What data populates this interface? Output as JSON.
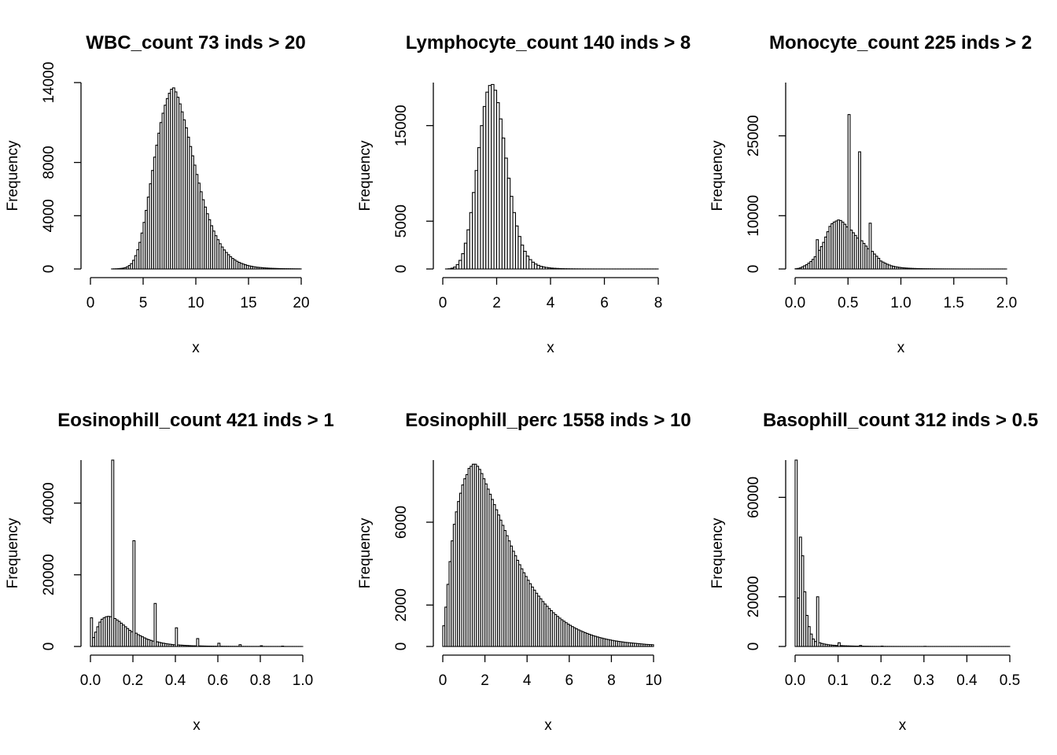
{
  "chart_data": [
    {
      "type": "bar",
      "title": "WBC_count 73 inds > 20",
      "xlabel": "x",
      "ylabel": "Frequency",
      "xlim": [
        0,
        20
      ],
      "ylim": [
        0,
        14000
      ],
      "xticks": [
        "0",
        "5",
        "10",
        "15",
        "20"
      ],
      "yticks": [
        "0",
        "4000",
        "8000",
        "14000"
      ],
      "bin_width": 0.2,
      "values": [
        0,
        0,
        0,
        0,
        0,
        0,
        0,
        0,
        0,
        0,
        5,
        10,
        15,
        25,
        40,
        60,
        100,
        160,
        260,
        400,
        650,
        1000,
        1450,
        2000,
        2700,
        3500,
        4400,
        5400,
        6400,
        7400,
        8400,
        9300,
        10200,
        11000,
        11700,
        12300,
        12800,
        13200,
        13500,
        13600,
        13300,
        12900,
        12400,
        11800,
        11200,
        10600,
        9900,
        9200,
        8500,
        7800,
        7100,
        6450,
        5800,
        5200,
        4650,
        4150,
        3700,
        3250,
        2850,
        2500,
        2200,
        1900,
        1650,
        1430,
        1240,
        1070,
        920,
        790,
        680,
        580,
        500,
        430,
        370,
        320,
        270,
        230,
        200,
        170,
        145,
        125,
        110,
        95,
        80,
        70,
        60,
        52,
        45,
        40,
        35,
        30,
        26,
        23,
        20,
        18,
        16,
        14,
        12,
        10,
        9,
        8,
        7,
        6,
        5,
        5,
        4,
        4,
        3,
        3,
        3,
        2,
        2,
        2,
        2,
        2,
        2,
        1,
        1,
        1,
        1,
        1,
        1,
        1,
        1,
        1,
        1,
        1,
        1,
        1,
        1,
        1,
        1,
        1,
        1,
        1,
        1,
        1,
        1,
        1,
        1,
        1,
        1,
        1,
        1,
        1,
        1,
        1,
        1,
        1,
        1,
        1,
        1,
        1,
        1,
        1,
        1,
        1,
        1,
        1,
        1,
        1,
        1,
        1,
        1,
        1,
        1,
        1,
        1,
        1,
        1,
        1,
        1,
        1,
        1,
        1,
        1,
        1,
        1,
        1,
        1,
        1,
        1,
        1,
        1,
        1,
        1,
        1,
        1,
        1,
        1,
        1,
        1,
        1,
        1,
        1,
        1,
        1,
        1,
        1,
        1,
        1,
        1,
        1,
        1,
        1
      ]
    },
    {
      "type": "bar",
      "title": "Lymphocyte_count 140 inds > 8",
      "xlabel": "x",
      "ylabel": "Frequency",
      "xlim": [
        0,
        8
      ],
      "ylim": [
        0,
        19500
      ],
      "xticks": [
        "0",
        "2",
        "4",
        "6",
        "8"
      ],
      "yticks": [
        "0",
        "5000",
        "15000"
      ],
      "bin_width": 0.1,
      "values": [
        0,
        5,
        25,
        80,
        200,
        450,
        900,
        1600,
        2700,
        4100,
        5900,
        8000,
        10300,
        12700,
        15000,
        17000,
        18500,
        19200,
        19300,
        18700,
        17400,
        15700,
        13700,
        11600,
        9500,
        7600,
        5900,
        4500,
        3400,
        2500,
        1850,
        1350,
        980,
        710,
        520,
        380,
        280,
        210,
        160,
        120,
        90,
        70,
        55,
        42,
        33,
        26,
        21,
        17,
        14,
        11,
        9,
        7,
        6,
        5,
        4,
        3,
        3,
        2,
        2,
        2,
        1,
        1,
        1,
        1,
        1,
        1,
        1,
        1,
        1,
        1,
        1,
        1,
        1,
        1,
        1,
        1,
        1,
        1,
        1,
        1
      ]
    },
    {
      "type": "bar",
      "title": "Monocyte_count 225 inds > 2",
      "xlabel": "x",
      "ylabel": "Frequency",
      "xlim": [
        0,
        2
      ],
      "ylim": [
        0,
        35000
      ],
      "xticks": [
        "0.0",
        "0.5",
        "1.0",
        "1.5",
        "2.0"
      ],
      "yticks": [
        "0",
        "10000",
        "25000"
      ],
      "bin_width": 0.02,
      "values": [
        50,
        100,
        200,
        400,
        600,
        800,
        1100,
        1400,
        1800,
        2300,
        5500,
        3500,
        4200,
        5000,
        6000,
        7000,
        8000,
        8500,
        8800,
        9000,
        9200,
        9100,
        8800,
        8400,
        7900,
        29000,
        7300,
        6800,
        6300,
        5800,
        22000,
        5300,
        4800,
        4300,
        3800,
        8600,
        3300,
        2800,
        2400,
        2000,
        1500,
        1300,
        1100,
        900,
        750,
        600,
        500,
        420,
        350,
        290,
        240,
        200,
        170,
        145,
        125,
        105,
        90,
        80,
        70,
        60,
        50,
        45,
        40,
        35,
        30,
        26,
        23,
        20,
        18,
        16,
        14,
        12,
        10,
        9,
        8,
        7,
        6,
        5,
        4,
        4,
        3,
        3,
        3,
        2,
        2,
        2,
        2,
        2,
        1,
        1,
        1,
        1,
        1,
        1,
        1,
        1,
        1,
        1,
        1,
        1
      ]
    },
    {
      "type": "bar",
      "title": "Eosinophill_count 421 inds > 1",
      "xlabel": "x",
      "ylabel": "Frequency",
      "xlim": [
        0,
        1
      ],
      "ylim": [
        0,
        52000
      ],
      "xticks": [
        "0.0",
        "0.2",
        "0.4",
        "0.6",
        "0.8",
        "1.0"
      ],
      "yticks": [
        "0",
        "20000",
        "40000"
      ],
      "bin_width": 0.01,
      "values": [
        8000,
        2500,
        4000,
        5500,
        6800,
        7600,
        8000,
        8300,
        8400,
        8300,
        52000,
        7800,
        7400,
        7000,
        6500,
        6000,
        5500,
        5000,
        4500,
        4100,
        29500,
        3700,
        3300,
        3000,
        2700,
        2400,
        2100,
        1900,
        1700,
        1500,
        12000,
        1300,
        1150,
        1000,
        900,
        800,
        700,
        620,
        550,
        480,
        5200,
        430,
        380,
        340,
        300,
        270,
        240,
        210,
        190,
        170,
        2200,
        150,
        135,
        120,
        108,
        96,
        86,
        77,
        69,
        62,
        900,
        56,
        50,
        45,
        40,
        36,
        32,
        29,
        26,
        23,
        500,
        21,
        19,
        17,
        15,
        13,
        12,
        11,
        10,
        9,
        200,
        8,
        7,
        6,
        5,
        5,
        4,
        4,
        3,
        3,
        100,
        3,
        2,
        2,
        2,
        2,
        1,
        1,
        1,
        1
      ]
    },
    {
      "type": "bar",
      "title": "Eosinophill_perc 1558 inds > 10",
      "xlabel": "x",
      "ylabel": "Frequency",
      "xlim": [
        0,
        10
      ],
      "ylim": [
        0,
        9000
      ],
      "xticks": [
        "0",
        "2",
        "4",
        "6",
        "8",
        "10"
      ],
      "yticks": [
        "0",
        "2000",
        "6000"
      ],
      "bin_width": 0.1,
      "values": [
        1000,
        1900,
        3000,
        4100,
        5100,
        5900,
        6500,
        7000,
        7400,
        7800,
        8100,
        8300,
        8600,
        8700,
        8800,
        8800,
        8700,
        8550,
        8350,
        8100,
        7850,
        7600,
        7350,
        7100,
        6850,
        6600,
        6350,
        6100,
        5850,
        5600,
        5350,
        5100,
        4850,
        4600,
        4380,
        4160,
        3950,
        3750,
        3560,
        3380,
        3200,
        3030,
        2870,
        2720,
        2570,
        2430,
        2300,
        2170,
        2050,
        1940,
        1830,
        1730,
        1630,
        1540,
        1450,
        1370,
        1290,
        1220,
        1150,
        1080,
        1020,
        960,
        905,
        850,
        800,
        755,
        710,
        670,
        630,
        590,
        555,
        520,
        490,
        460,
        430,
        405,
        380,
        355,
        335,
        315,
        295,
        275,
        260,
        245,
        230,
        215,
        200,
        190,
        180,
        170,
        160,
        150,
        140,
        130,
        120,
        110,
        100,
        95,
        90,
        85
      ]
    },
    {
      "type": "bar",
      "title": "Basophill_count 312 inds > 0.5",
      "xlabel": "x",
      "ylabel": "Frequency",
      "xlim": [
        0,
        0.5
      ],
      "ylim": [
        0,
        75000
      ],
      "xticks": [
        "0.0",
        "0.1",
        "0.2",
        "0.3",
        "0.4",
        "0.5"
      ],
      "yticks": [
        "0",
        "20000",
        "60000"
      ],
      "bin_width": 0.005,
      "values": [
        75000,
        19500,
        44000,
        36500,
        22000,
        12500,
        8000,
        5000,
        3000,
        2000,
        20000,
        1500,
        1200,
        1000,
        850,
        700,
        600,
        500,
        450,
        400,
        1500,
        350,
        300,
        260,
        230,
        200,
        180,
        160,
        140,
        120,
        400,
        100,
        90,
        80,
        70,
        60,
        50,
        45,
        40,
        35,
        150,
        30,
        26,
        23,
        20,
        18,
        16,
        14,
        12,
        10,
        9,
        8,
        7,
        6,
        5,
        5,
        4,
        4,
        3,
        3,
        60,
        3,
        2,
        2,
        2,
        2,
        1,
        1,
        1,
        1,
        1,
        1,
        1,
        1,
        1,
        1,
        1,
        1,
        1,
        1,
        1,
        1,
        1,
        1,
        1,
        1,
        1,
        1,
        1,
        1,
        1,
        1,
        1,
        1,
        1,
        1,
        1,
        1,
        1,
        1
      ]
    }
  ]
}
